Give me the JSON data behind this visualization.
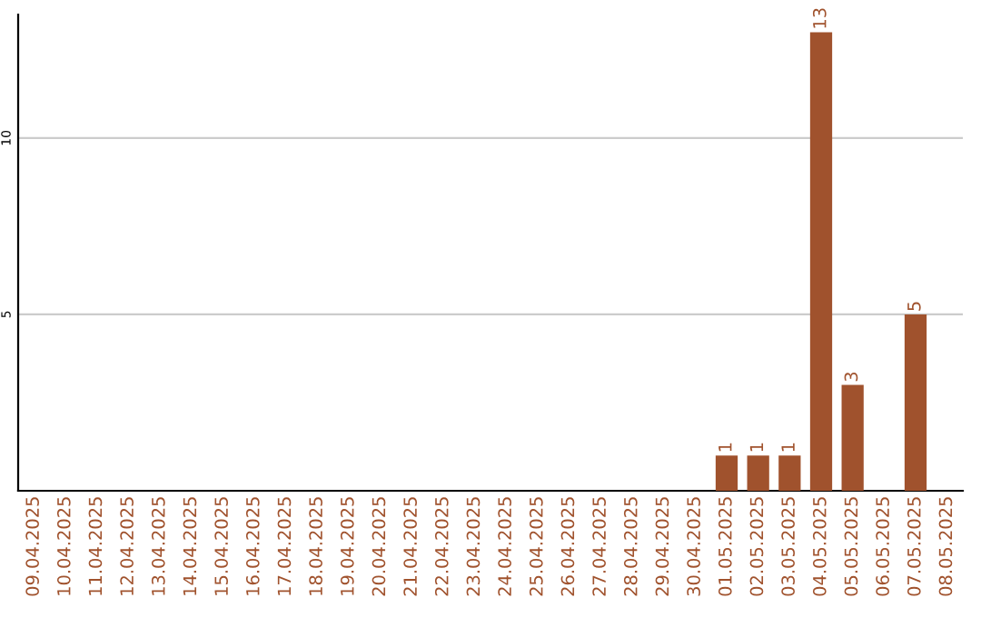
{
  "chart_data": {
    "type": "bar",
    "categories": [
      "09.04.2025",
      "10.04.2025",
      "11.04.2025",
      "12.04.2025",
      "13.04.2025",
      "14.04.2025",
      "15.04.2025",
      "16.04.2025",
      "17.04.2025",
      "18.04.2025",
      "19.04.2025",
      "20.04.2025",
      "21.04.2025",
      "22.04.2025",
      "23.04.2025",
      "24.04.2025",
      "25.04.2025",
      "26.04.2025",
      "27.04.2025",
      "28.04.2025",
      "29.04.2025",
      "30.04.2025",
      "01.05.2025",
      "02.05.2025",
      "03.05.2025",
      "04.05.2025",
      "05.05.2025",
      "06.05.2025",
      "07.05.2025",
      "08.05.2025"
    ],
    "series": [
      {
        "color": "#a0522d",
        "values": [
          null,
          null,
          null,
          null,
          null,
          null,
          null,
          null,
          null,
          null,
          null,
          null,
          null,
          null,
          null,
          null,
          null,
          null,
          null,
          null,
          null,
          null,
          1,
          1,
          1,
          13,
          3,
          null,
          5,
          null
        ]
      }
    ],
    "ylim": [
      0,
      13.5
    ],
    "yticks": [
      5,
      10
    ],
    "grid": "y",
    "data_labels": true
  }
}
